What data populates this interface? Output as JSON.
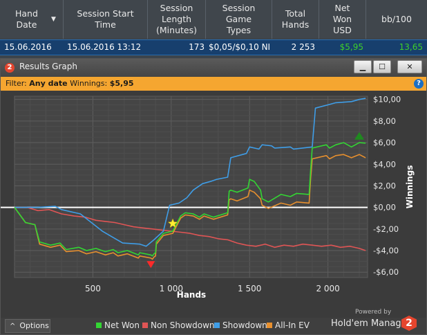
{
  "table": {
    "headers": [
      {
        "label": "Hand\nDate",
        "sort": "▼"
      },
      {
        "label": "Session Start\nTime"
      },
      {
        "label": "Session\nLength\n(Minutes)"
      },
      {
        "label": "Session\nGame\nTypes"
      },
      {
        "label": "Total\nHands"
      },
      {
        "label": "Net\nWon\nUSD"
      },
      {
        "label": "bb/100"
      }
    ],
    "row": {
      "hand_date": "15.06.2016",
      "start_time": "15.06.2016 13:12",
      "length": "173",
      "game_types": "$0,05/$0,10 NI",
      "total_hands": "2 253",
      "net_won": "$5,95",
      "bb100": "13,65"
    },
    "accent_positive": "#3ecf2a"
  },
  "window": {
    "title": "Results Graph",
    "app_badge": "2",
    "min_symbol": "▁",
    "max_symbol": "☐",
    "close_symbol": "✕"
  },
  "filter": {
    "prefix": "Filter: ",
    "date": "Any date",
    "winnings_label": " Winnings: ",
    "winnings_value": "$5,95",
    "help_symbol": "?"
  },
  "chart_data": {
    "type": "line",
    "xlabel": "Hands",
    "ylabel": "Winnings",
    "xlim": [
      0,
      2253
    ],
    "ylim": [
      -6.5,
      10.3
    ],
    "x_ticks": [
      500,
      1000,
      1500,
      2000
    ],
    "x_tick_labels": [
      "500",
      "1 000",
      "1 500",
      "2 000"
    ],
    "y_ticks": [
      -6,
      -4,
      -2,
      0,
      2,
      4,
      6,
      8,
      10
    ],
    "y_tick_labels": [
      "-$6,00",
      "-$4,00",
      "-$2,00",
      "$0,00",
      "$2,00",
      "$4,00",
      "$6,00",
      "$8,00",
      "$10,00"
    ],
    "grid": true,
    "legend_position": "bottom",
    "series": [
      {
        "name": "Net Won",
        "color": "#33d633",
        "x": [
          0,
          70,
          130,
          160,
          230,
          290,
          330,
          410,
          460,
          520,
          580,
          630,
          660,
          720,
          790,
          800,
          870,
          880,
          890,
          900,
          905,
          950,
          1010,
          1060,
          1090,
          1140,
          1180,
          1210,
          1270,
          1360,
          1370,
          1380,
          1420,
          1490,
          1500,
          1530,
          1570,
          1580,
          1620,
          1700,
          1760,
          1800,
          1880,
          1890,
          1900,
          1990,
          2010,
          2050,
          2100,
          2150,
          2200,
          2240
        ],
        "y": [
          0,
          -1.4,
          -1.6,
          -3.2,
          -3.5,
          -3.3,
          -3.9,
          -3.7,
          -4.0,
          -3.8,
          -4.1,
          -3.9,
          -4.2,
          -4.0,
          -4.4,
          -4.2,
          -4.4,
          -4.5,
          -4.3,
          -4.2,
          -3.2,
          -2.4,
          -2.2,
          -0.8,
          -0.5,
          -0.6,
          -0.9,
          -0.6,
          -0.9,
          -0.5,
          1.5,
          1.6,
          1.4,
          1.8,
          2.6,
          2.4,
          1.6,
          0.8,
          0.5,
          1.2,
          1.0,
          1.3,
          1.2,
          3.6,
          5.5,
          5.8,
          5.5,
          5.8,
          6.0,
          5.6,
          6.0,
          5.95
        ]
      },
      {
        "name": "Non Showdown",
        "color": "#e05555",
        "x": [
          0,
          80,
          150,
          220,
          300,
          380,
          450,
          520,
          580,
          640,
          700,
          760,
          820,
          880,
          940,
          1000,
          1060,
          1120,
          1180,
          1240,
          1300,
          1360,
          1420,
          1480,
          1540,
          1600,
          1660,
          1720,
          1780,
          1840,
          1900,
          1960,
          2020,
          2080,
          2140,
          2200,
          2240
        ],
        "y": [
          0,
          0,
          -0.3,
          -0.2,
          -0.6,
          -0.8,
          -0.9,
          -1.2,
          -1.3,
          -1.4,
          -1.6,
          -1.8,
          -1.9,
          -2.0,
          -2.1,
          -2.2,
          -2.3,
          -2.4,
          -2.6,
          -2.7,
          -2.9,
          -3.0,
          -3.3,
          -3.5,
          -3.6,
          -3.4,
          -3.7,
          -3.5,
          -3.6,
          -3.4,
          -3.5,
          -3.6,
          -3.5,
          -3.7,
          -3.6,
          -3.8,
          -4.0
        ]
      },
      {
        "name": "Showdown",
        "color": "#3f9ee8",
        "x": [
          0,
          150,
          260,
          300,
          420,
          560,
          690,
          800,
          840,
          890,
          950,
          990,
          1050,
          1100,
          1140,
          1200,
          1250,
          1290,
          1360,
          1380,
          1480,
          1500,
          1560,
          1580,
          1640,
          1660,
          1760,
          1780,
          1900,
          1920,
          2000,
          2050,
          2150,
          2200,
          2240
        ],
        "y": [
          0,
          0,
          0.1,
          -0.2,
          -0.6,
          -2.2,
          -3.3,
          -3.4,
          -3.6,
          -3.0,
          -2.2,
          0.2,
          0.4,
          0.9,
          1.6,
          2.2,
          2.4,
          2.6,
          2.8,
          4.6,
          5.0,
          5.6,
          5.4,
          5.8,
          5.7,
          5.5,
          5.6,
          5.4,
          5.6,
          9.2,
          9.5,
          9.7,
          9.8,
          10.0,
          10.1
        ]
      },
      {
        "name": "All-In EV",
        "color": "#e8902e",
        "x": [
          0,
          70,
          130,
          160,
          230,
          290,
          330,
          410,
          460,
          520,
          580,
          630,
          660,
          720,
          790,
          800,
          870,
          880,
          890,
          900,
          905,
          950,
          1010,
          1060,
          1090,
          1140,
          1180,
          1210,
          1270,
          1360,
          1370,
          1380,
          1420,
          1490,
          1500,
          1530,
          1570,
          1580,
          1620,
          1700,
          1760,
          1800,
          1880,
          1890,
          1900,
          1990,
          2010,
          2050,
          2100,
          2150,
          2200,
          2240
        ],
        "y": [
          0,
          -1.4,
          -1.6,
          -3.4,
          -3.7,
          -3.5,
          -4.1,
          -4.0,
          -4.3,
          -4.1,
          -4.4,
          -4.2,
          -4.5,
          -4.3,
          -4.7,
          -4.5,
          -4.7,
          -4.8,
          -4.6,
          -4.5,
          -3.4,
          -2.6,
          -2.4,
          -1.0,
          -0.7,
          -0.8,
          -1.1,
          -0.8,
          -1.1,
          -0.7,
          0.7,
          0.8,
          0.6,
          1.0,
          1.6,
          1.4,
          0.8,
          0.2,
          -0.1,
          0.4,
          0.2,
          0.5,
          0.4,
          2.8,
          4.5,
          4.8,
          4.5,
          4.8,
          4.9,
          4.6,
          4.9,
          4.6
        ]
      }
    ],
    "markers": [
      {
        "type": "low",
        "x": 870,
        "y": -5.3,
        "color": "#ff2a2a"
      },
      {
        "type": "star",
        "x": 1010,
        "y": -1.5,
        "color": "#ffee33"
      },
      {
        "type": "high",
        "x": 2200,
        "y": 6.6,
        "color": "#1f8a1f"
      }
    ]
  },
  "footer": {
    "options_label": "Options",
    "options_icon": "^",
    "powered_by": "Powered by",
    "brand": "Hold'em Manager",
    "brand_badge": "2"
  }
}
